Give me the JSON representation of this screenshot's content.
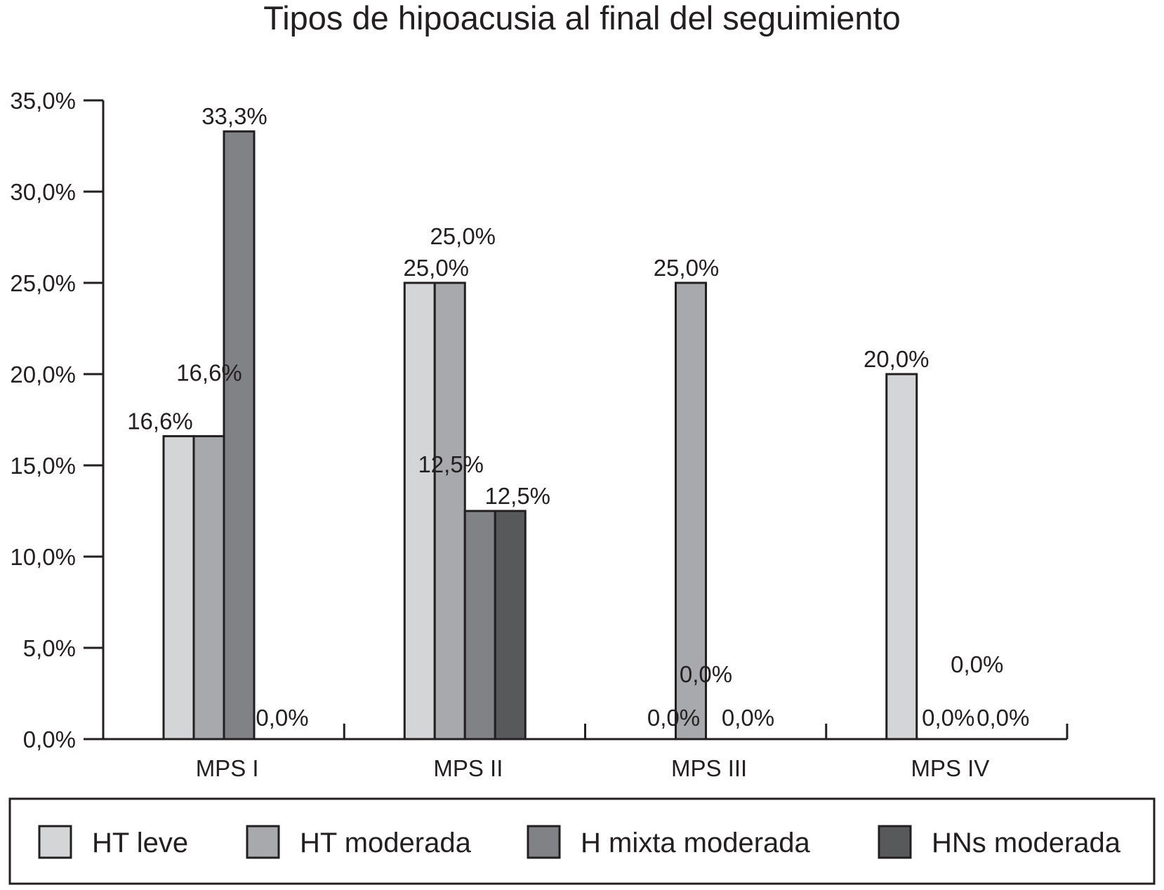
{
  "chart_data": {
    "type": "bar",
    "title": "Tipos de hipoacusia al final del seguimiento",
    "xlabel": "",
    "ylabel": "",
    "ylim": [
      0,
      35
    ],
    "yticks": [
      "0,0%",
      "5,0%",
      "10,0%",
      "15,0%",
      "20,0%",
      "25,0%",
      "30,0%",
      "35,0%"
    ],
    "categories": [
      "MPS I",
      "MPS II",
      "MPS III",
      "MPS IV"
    ],
    "grid": false,
    "legend_position": "bottom",
    "series": [
      {
        "name": "HT leve",
        "color": "#d4d5d7",
        "values": [
          16.6,
          25.0,
          0.0,
          20.0
        ],
        "labels": [
          "16,6%",
          "25,0%",
          "0,0%",
          "20,0%"
        ]
      },
      {
        "name": "HT moderada",
        "color": "#a7a9ac",
        "values": [
          16.6,
          25.0,
          25.0,
          0.0
        ],
        "labels": [
          "16,6%",
          "25,0%",
          "25,0%",
          "0,0%"
        ]
      },
      {
        "name": "H mixta moderada",
        "color": "#808285",
        "values": [
          33.3,
          12.5,
          0.0,
          0.0
        ],
        "labels": [
          "33,3%",
          "12,5%",
          "0,0%",
          "0,0%"
        ]
      },
      {
        "name": "HNs moderada",
        "color": "#58595b",
        "values": [
          0.0,
          12.5,
          0.0,
          0.0
        ],
        "labels": [
          "0,0%",
          "12,5%",
          "0,0%",
          "0,0%"
        ]
      }
    ]
  }
}
